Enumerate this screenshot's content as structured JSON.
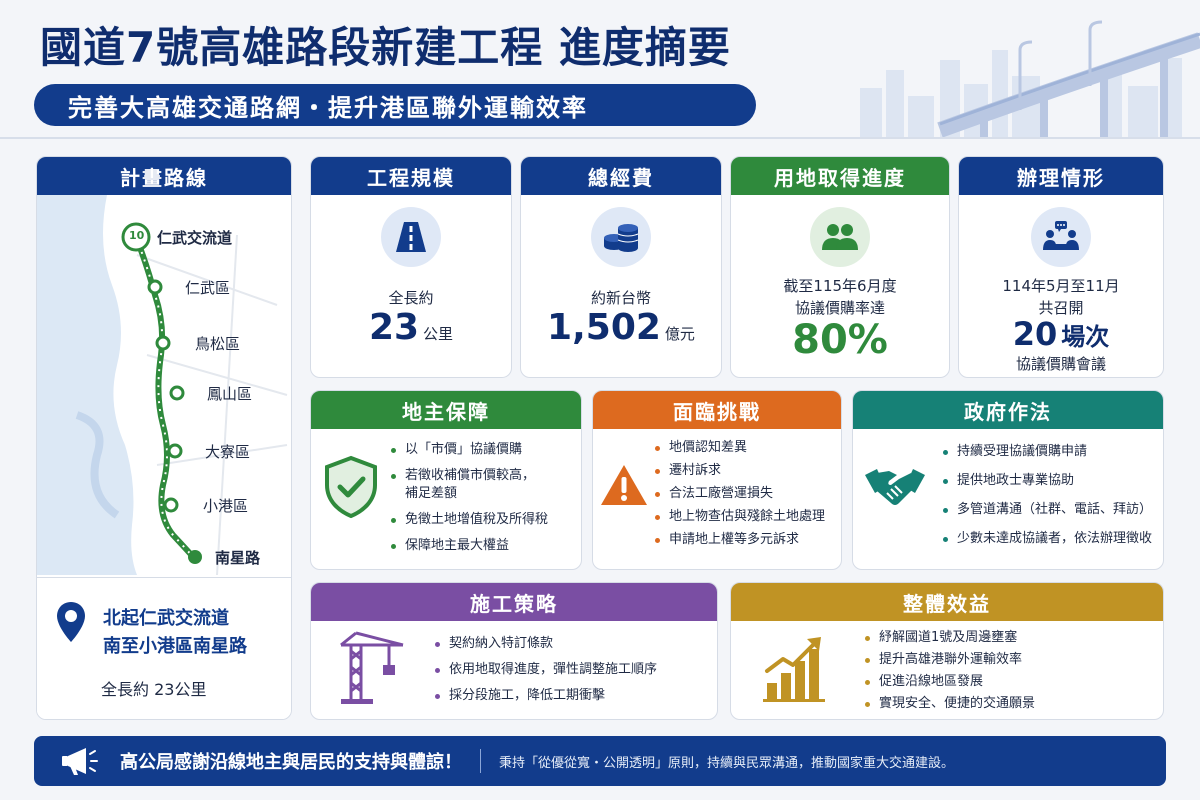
{
  "header": {
    "title": "國道7號高雄路段新建工程 進度摘要",
    "subtitle": "完善大高雄交通路網・提升港區聯外運輸效率"
  },
  "route": {
    "heading": "計畫路線",
    "shield_number": "10",
    "stops": [
      "仁武交流道",
      "仁武區",
      "鳥松區",
      "鳳山區",
      "大寮區",
      "小港區",
      "南星路"
    ],
    "summary_line1": "北起仁武交流道",
    "summary_line2": "南至小港區南星路",
    "total_length": "全長約 23公里"
  },
  "stats": [
    {
      "heading": "工程規模",
      "line1": "全長約",
      "big": "23",
      "unit": "公里",
      "icon": "road-icon"
    },
    {
      "heading": "總經費",
      "line1": "約新台幣",
      "big": "1,502",
      "unit": "億元",
      "icon": "coins-icon"
    },
    {
      "heading": "用地取得進度",
      "line1": "截至115年6月度",
      "line2": "協議價購率達",
      "big": "80%",
      "unit": "",
      "icon": "people-icon",
      "progress_percent": 80
    },
    {
      "heading": "辦理情形",
      "line1": "114年5月至11月",
      "line2": "共召開",
      "big": "20",
      "unit": "場次",
      "line3": "協議價購會議",
      "icon": "meeting-icon"
    }
  ],
  "panels": {
    "landowner": {
      "heading": "地主保障",
      "items": [
        "以「市價」協議價購",
        "若徵收補償市價較高，",
        "免徵土地增值稅及所得稅",
        "保障地主最大權益"
      ],
      "item2_cont": "補足差額"
    },
    "challenges": {
      "heading": "面臨挑戰",
      "items": [
        "地價認知差異",
        "遷村訴求",
        "合法工廠營運損失",
        "地上物查估與殘餘土地處理",
        "申請地上權等多元訴求"
      ]
    },
    "government": {
      "heading": "政府作法",
      "items": [
        "持續受理協議價購申請",
        "提供地政士專業協助",
        "多管道溝通（社群、電話、拜訪）",
        "少數未達成協議者，依法辦理徵收"
      ]
    },
    "construction": {
      "heading": "施工策略",
      "items": [
        "契約納入特訂條款",
        "依用地取得進度，彈性調整施工順序",
        "採分段施工，降低工期衝擊"
      ]
    },
    "benefits": {
      "heading": "整體效益",
      "items": [
        "紓解國道1號及周邊壅塞",
        "提升高雄港聯外運輸效率",
        "促進沿線地區發展",
        "實現安全、便捷的交通願景"
      ]
    }
  },
  "footer": {
    "main": "高公局感謝沿線地主與居民的支持與體諒！",
    "sub": "秉持「從優從寬・公開透明」原則，持續與民眾溝通，推動國家重大交通建設。"
  },
  "colors": {
    "navy": "#123c8c",
    "green": "#2f8a3c",
    "orange": "#dd6a1f",
    "teal": "#168176",
    "purple": "#7a4ea3",
    "gold": "#c09324"
  }
}
